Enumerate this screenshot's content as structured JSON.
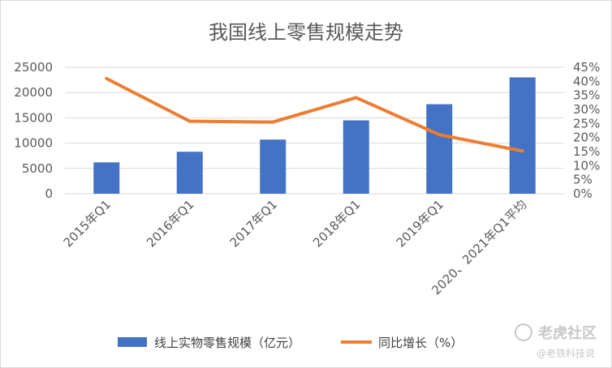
{
  "chart_data": {
    "type": "bar+line",
    "title": "我国线上零售规模走势",
    "categories": [
      "2015年Q1",
      "2016年Q1",
      "2017年Q1",
      "2018年Q1",
      "2019年Q1",
      "2020、2021年Q1平均"
    ],
    "series": [
      {
        "name": "线上实物零售规模（亿元）",
        "type": "bar",
        "axis": "left",
        "color": "#4472c4",
        "values": [
          6200,
          8300,
          10700,
          14500,
          17700,
          23000
        ]
      },
      {
        "name": "同比增长（%）",
        "type": "line",
        "axis": "right",
        "color": "#ed7d31",
        "values": [
          41,
          25.8,
          25.5,
          34.2,
          21,
          15.2
        ]
      }
    ],
    "y_left": {
      "min": 0,
      "max": 25000,
      "ticks": [
        "0",
        "5000",
        "10000",
        "15000",
        "20000",
        "25000"
      ]
    },
    "y_right": {
      "min": 0,
      "max": 45,
      "ticks": [
        "0%",
        "5%",
        "10%",
        "15%",
        "20%",
        "25%",
        "30%",
        "35%",
        "40%",
        "45%"
      ]
    },
    "grid": true,
    "legend_position": "bottom"
  },
  "watermark": {
    "main": "老虎社区",
    "sub": "@老铁科技说"
  }
}
